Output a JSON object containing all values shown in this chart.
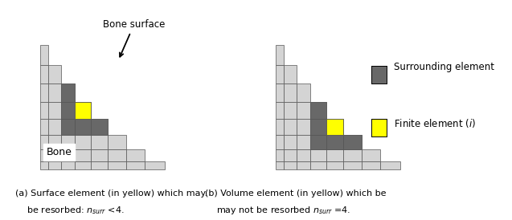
{
  "bg_color": "#ffffff",
  "mesh_color": "#555555",
  "light_gray": "#d4d4d4",
  "dark_gray": "#686868",
  "yellow": "#ffff00",
  "text_color": "#000000",
  "legend_surrounding": "Surrounding element",
  "legend_finite": "Finite element ($i$)",
  "label_bone_surface": "Bone surface",
  "label_bone": "Bone",
  "panel_a_line1": "(a) Surface element (in yellow) which may.",
  "panel_a_line2": "    be resorbed: $n_{surr}$ <4.",
  "panel_b_line1": "(b) Volume element (in yellow) which be",
  "panel_b_line2": "    may not be resorbed $n_{surr}$ =4."
}
